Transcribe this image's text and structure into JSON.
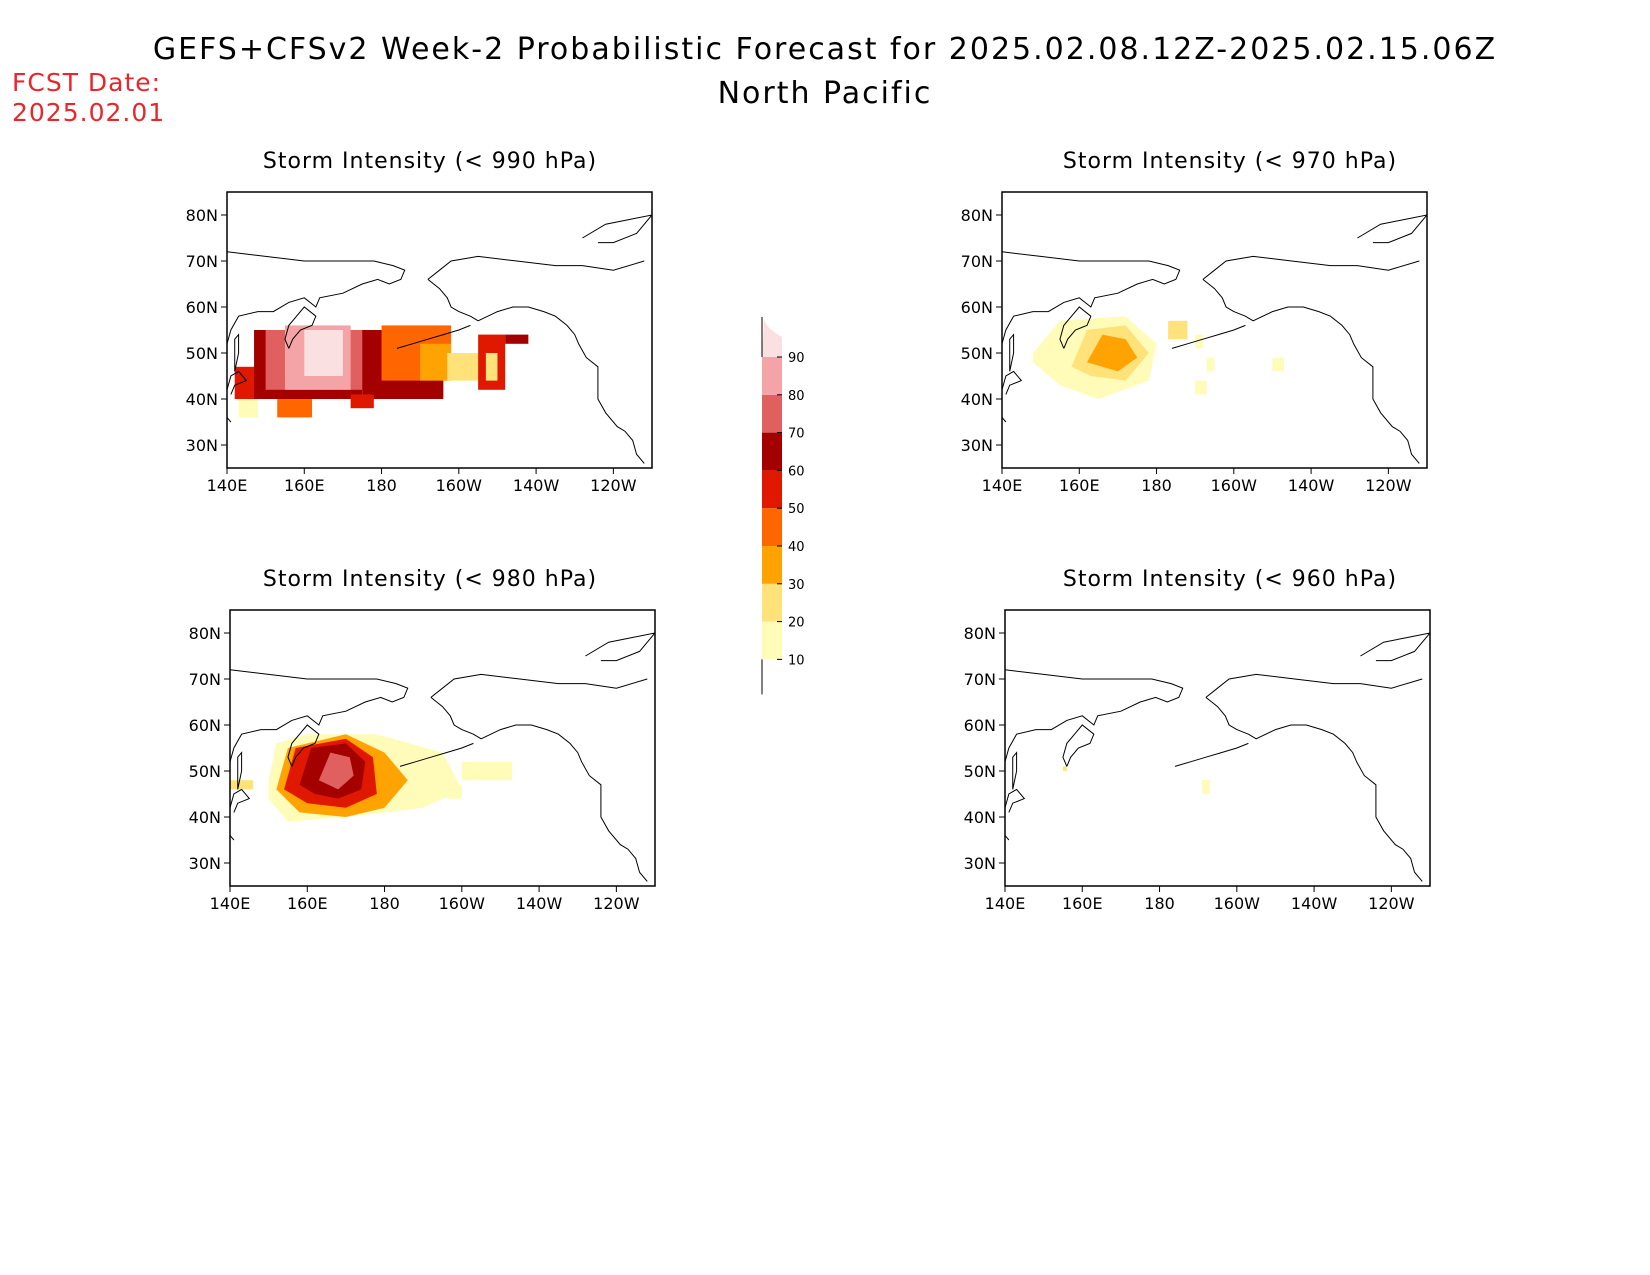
{
  "title": "GEFS+CFSv2 Week-2 Probabilistic Forecast for 2025.02.08.12Z-2025.02.15.06Z",
  "subtitle": "North Pacific",
  "fcst_label": "FCST Date:",
  "fcst_date": "2025.02.01",
  "lon_ticks": [
    "140E",
    "160E",
    "180",
    "160W",
    "140W",
    "120W"
  ],
  "lat_ticks": [
    "80N",
    "70N",
    "60N",
    "50N",
    "40N",
    "30N"
  ],
  "colorbar": {
    "levels": [
      "10",
      "20",
      "30",
      "40",
      "50",
      "60",
      "70",
      "80",
      "90"
    ],
    "colors": [
      "#fffbb8",
      "#ffe27a",
      "#ffa302",
      "#ff6600",
      "#e01800",
      "#a50000",
      "#e06060",
      "#f4a3a6",
      "#fbe0e2"
    ]
  },
  "panels": [
    {
      "id": "p990",
      "title": "Storm Intensity (< 990 hPa)"
    },
    {
      "id": "p970",
      "title": "Storm Intensity (< 970 hPa)"
    },
    {
      "id": "p980",
      "title": "Storm Intensity (< 980 hPa)"
    },
    {
      "id": "p960",
      "title": "Storm Intensity (< 960 hPa)"
    }
  ]
}
